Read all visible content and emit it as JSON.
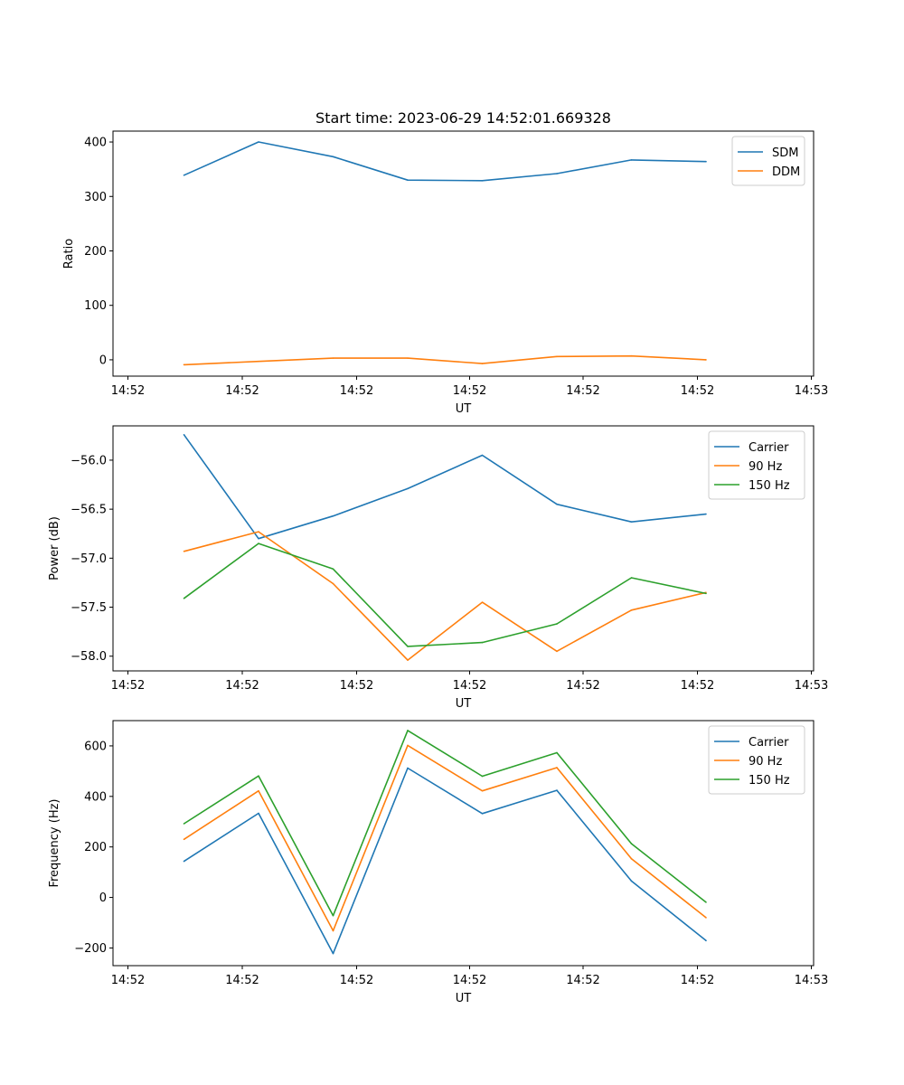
{
  "title": "Start time: 2023-06-29 14:52:01.669328",
  "chart_data": [
    {
      "type": "line",
      "xlabel": "UT",
      "ylabel": "Ratio",
      "x_ticks": [
        "14:52",
        "14:52",
        "14:52",
        "14:52",
        "14:52",
        "14:52",
        "14:52",
        "14:53"
      ],
      "x": [
        1,
        2,
        3,
        4,
        5,
        6,
        7,
        8
      ],
      "y_ticks": [
        0,
        100,
        200,
        300,
        400
      ],
      "ylim": [
        -30,
        420
      ],
      "legend": "top-right",
      "series": [
        {
          "name": "SDM",
          "color": "#1f77b4",
          "values": [
            339,
            400,
            373,
            330,
            329,
            342,
            367,
            364
          ]
        },
        {
          "name": "DDM",
          "color": "#ff7f0e",
          "values": [
            -9,
            -3,
            3,
            3,
            -7,
            6,
            7,
            0
          ]
        }
      ]
    },
    {
      "type": "line",
      "xlabel": "UT",
      "ylabel": "Power (dB)",
      "x_ticks": [
        "14:52",
        "14:52",
        "14:52",
        "14:52",
        "14:52",
        "14:52",
        "14:52",
        "14:53"
      ],
      "x": [
        1,
        2,
        3,
        4,
        5,
        6,
        7,
        8
      ],
      "y_ticks": [
        -56.0,
        -56.5,
        -57.0,
        -57.5,
        -58.0
      ],
      "y_tick_labels": [
        "−56.0",
        "−56.5",
        "−57.0",
        "−57.5",
        "−58.0"
      ],
      "ylim": [
        -58.15,
        -55.65
      ],
      "legend": "top-right",
      "series": [
        {
          "name": "Carrier",
          "color": "#1f77b4",
          "values": [
            -55.74,
            -56.8,
            -56.57,
            -56.29,
            -55.95,
            -56.45,
            -56.63,
            -56.55
          ]
        },
        {
          "name": "90 Hz",
          "color": "#ff7f0e",
          "values": [
            -56.93,
            -56.73,
            -57.26,
            -58.04,
            -57.45,
            -57.95,
            -57.53,
            -57.35
          ]
        },
        {
          "name": "150 Hz",
          "color": "#2ca02c",
          "values": [
            -57.41,
            -56.85,
            -57.11,
            -57.9,
            -57.86,
            -57.67,
            -57.2,
            -57.36
          ]
        }
      ]
    },
    {
      "type": "line",
      "xlabel": "UT",
      "ylabel": "Frequency (Hz)",
      "x_ticks": [
        "14:52",
        "14:52",
        "14:52",
        "14:52",
        "14:52",
        "14:52",
        "14:52",
        "14:53"
      ],
      "x": [
        1,
        2,
        3,
        4,
        5,
        6,
        7,
        8
      ],
      "y_ticks": [
        -200,
        0,
        200,
        400,
        600
      ],
      "y_tick_labels": [
        "−200",
        "0",
        "200",
        "400",
        "600"
      ],
      "ylim": [
        -270,
        700
      ],
      "legend": "top-right",
      "series": [
        {
          "name": "Carrier",
          "color": "#1f77b4",
          "values": [
            143,
            333,
            -222,
            512,
            332,
            424,
            65,
            -171
          ]
        },
        {
          "name": "90 Hz",
          "color": "#ff7f0e",
          "values": [
            230,
            422,
            -132,
            602,
            422,
            514,
            153,
            -80
          ]
        },
        {
          "name": "150 Hz",
          "color": "#2ca02c",
          "values": [
            292,
            481,
            -72,
            661,
            480,
            573,
            213,
            -19
          ]
        }
      ]
    }
  ]
}
